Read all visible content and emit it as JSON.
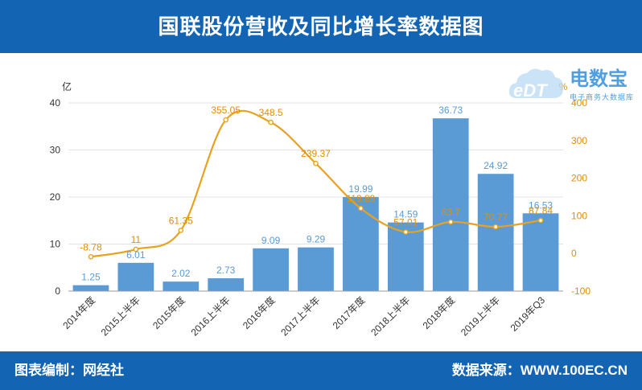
{
  "header": {
    "title": "国联股份营收及同比增长率数据图"
  },
  "footer": {
    "left": "图表编制：网经社",
    "right": "数据来源：WWW.100EC.CN"
  },
  "logo": {
    "main": "电数宝",
    "badge": "eDT",
    "sub": "电子商务大数据库"
  },
  "colors": {
    "header": "#1464b4",
    "bar": "#5b9bd5",
    "line": "#e8a21d",
    "lineLabel": "#e08e0b",
    "barLabel": "#5b9bd5"
  },
  "chart_data": {
    "type": "bar",
    "categories": [
      "2014年度",
      "2015上半年",
      "2015年度",
      "2016上半年",
      "2016年度",
      "2017上半年",
      "2017年度",
      "2018上半年",
      "2018年度",
      "2019上半年",
      "2019年Q3"
    ],
    "series": [
      {
        "name": "",
        "type": "bar",
        "axis": "left",
        "values": [
          1.25,
          6.01,
          2.02,
          2.73,
          9.09,
          9.29,
          19.99,
          14.59,
          36.73,
          24.92,
          16.53
        ]
      },
      {
        "name": "",
        "type": "line",
        "axis": "right",
        "values": [
          -8.78,
          11,
          61.35,
          355.05,
          348.5,
          239.37,
          119.89,
          57.01,
          83.7,
          70.77,
          87.84
        ]
      }
    ],
    "y_left": {
      "unit": "亿",
      "range": [
        0,
        40
      ],
      "ticks": [
        0,
        10,
        20,
        30,
        40
      ]
    },
    "y_right": {
      "unit": "%",
      "range": [
        -100,
        400
      ],
      "ticks": [
        -100,
        0,
        100,
        200,
        300,
        400
      ]
    },
    "bar_labels": [
      "1.25",
      "6.01",
      "2.02",
      "2.73",
      "9.09",
      "9.29",
      "19.99",
      "14.59",
      "36.73",
      "24.92",
      "16.53"
    ],
    "line_labels": [
      "-8.78",
      "11",
      "61.35",
      "355.05",
      "348.5",
      "239.37",
      "119.89",
      "57.01",
      "83.7",
      "70.77",
      "87.84"
    ],
    "grid": true,
    "legend": "none"
  }
}
